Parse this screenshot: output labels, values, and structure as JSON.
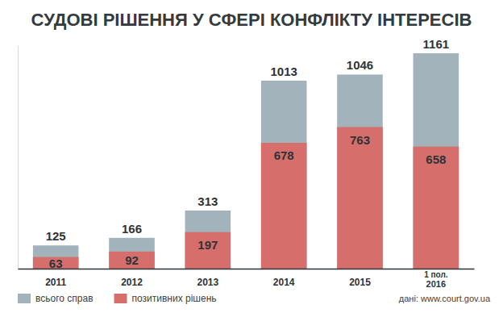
{
  "chart_data": {
    "type": "bar",
    "title": "СУДОВІ РІШЕННЯ У СФЕРІ КОНФЛІКТУ ІНТЕРЕСІВ",
    "categories": [
      "2011",
      "2012",
      "2013",
      "2014",
      "2015",
      "1 пол. 2016"
    ],
    "series": [
      {
        "name": "всього справ",
        "color": "#a3b3bc",
        "values": [
          125,
          166,
          313,
          1013,
          1046,
          1161
        ]
      },
      {
        "name": "позитивних рішень",
        "color": "#d66f6c",
        "values": [
          63,
          92,
          197,
          678,
          763,
          658
        ]
      }
    ],
    "ylim": [
      0,
      1200
    ],
    "yticks": [],
    "stacked": false,
    "grid": false,
    "data_labels": true,
    "tick_labels": "x",
    "legend": "bottom-left",
    "annotations": [
      "дані: www.court.gov.ua"
    ]
  }
}
